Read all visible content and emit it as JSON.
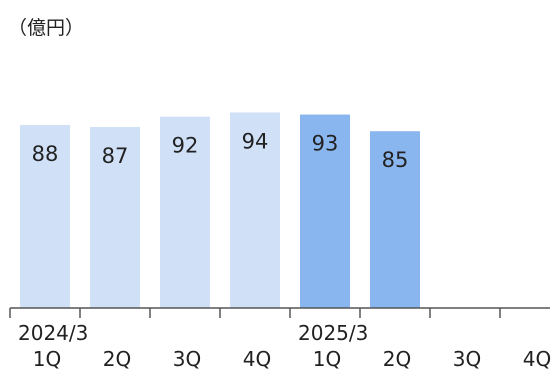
{
  "chart_data": {
    "type": "bar",
    "unit_label": "（億円）",
    "categories": [
      "1Q",
      "2Q",
      "3Q",
      "4Q",
      "1Q",
      "2Q",
      "3Q",
      "4Q"
    ],
    "fiscal_year_labels": [
      {
        "label": "2024/3",
        "start_index": 0
      },
      {
        "label": "2025/3",
        "start_index": 4
      }
    ],
    "values": [
      88,
      87,
      92,
      94,
      93,
      85,
      null,
      null
    ],
    "ylim": [
      0,
      100
    ],
    "colors": {
      "previous_year": "#cfe0f7",
      "current_year": "#8ab6f0",
      "axis": "#555555",
      "text": "#222222"
    },
    "bar_year_group": [
      "previous",
      "previous",
      "previous",
      "previous",
      "current",
      "current",
      "current",
      "current"
    ]
  }
}
